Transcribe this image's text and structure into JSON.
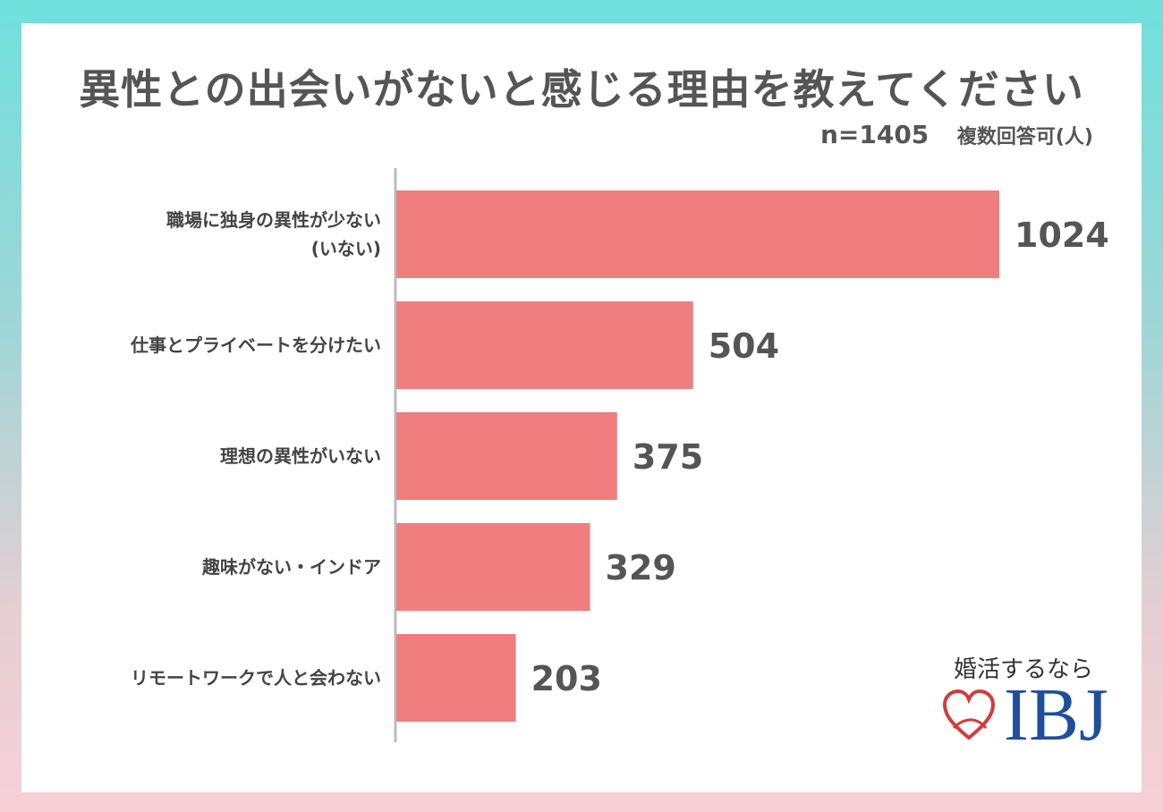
{
  "title": "異性との出会いがないと感じる理由を教えてください",
  "sample_size": "n=1405",
  "multi_answer_note": "複数回答可(人)",
  "logo": {
    "tagline": "婚活するなら",
    "brand": "IBJ",
    "icon": "heart-icon"
  },
  "colors": {
    "bar": "#f07e7e",
    "axis": "#bbbbbb",
    "text": "#555555"
  },
  "chart_data": {
    "type": "bar",
    "orientation": "horizontal",
    "categories": [
      [
        "職場に独身の異性が少ない",
        "(いない)"
      ],
      [
        "仕事とプライベートを分けたい"
      ],
      [
        "理想の異性がいない"
      ],
      [
        "趣味がない・インドア"
      ],
      [
        "リモートワークで人と会わない"
      ]
    ],
    "values": [
      1024,
      504,
      375,
      329,
      203
    ],
    "value_labels": [
      "1024",
      "504",
      "375",
      "329",
      "203"
    ],
    "title": "異性との出会いがないと感じる理由を教えてください",
    "xlabel": "",
    "ylabel": "",
    "xlim": [
      0,
      1024
    ],
    "grid": false,
    "legend": "none"
  }
}
